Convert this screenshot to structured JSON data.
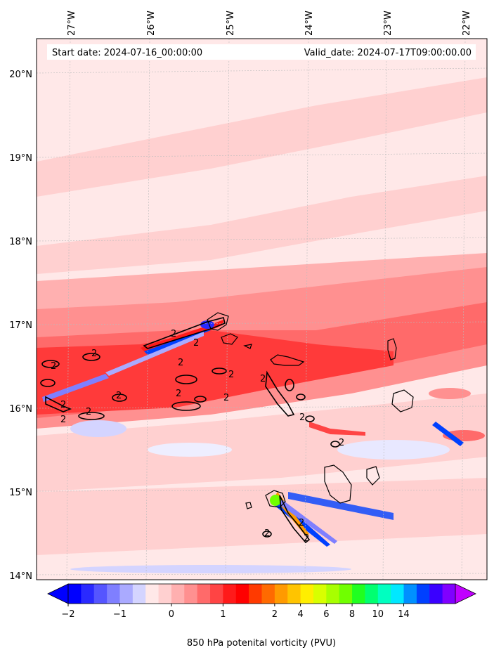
{
  "header": {
    "start_date": "Start date: 2024-07-16_00:00:00",
    "valid_date": "Valid_date: 2024-07-17T09:00:00.00"
  },
  "map": {
    "lon_labels": [
      "27°W",
      "26°W",
      "25°W",
      "24°W",
      "23°W",
      "22°W"
    ],
    "lat_labels": [
      "20°N",
      "19°N",
      "18°N",
      "17°N",
      "16°N",
      "15°N",
      "14°N"
    ],
    "contour_label": "2",
    "field": "850 hPa potential vorticity",
    "contour_level_pvu": 2
  },
  "colorbar": {
    "label": "850 hPa potenital vorticity (PVU)",
    "ticks": [
      "−2",
      "−1",
      "0",
      "1",
      "2",
      "4",
      "6",
      "8",
      "10",
      "14"
    ],
    "colors": [
      "#0000ff",
      "#2a2aff",
      "#5555ff",
      "#7f7fff",
      "#aaaaff",
      "#d4d4ff",
      "#ffe8e8",
      "#ffd0d0",
      "#ffb0b0",
      "#ff9090",
      "#ff6a6a",
      "#ff4444",
      "#ff1a1a",
      "#ff0000",
      "#ff3a00",
      "#ff6a00",
      "#ff9a00",
      "#ffc400",
      "#ffee00",
      "#d8ff00",
      "#a8ff00",
      "#70ff00",
      "#20ff20",
      "#00ff70",
      "#00ffc0",
      "#00e8ff",
      "#0090ff",
      "#0040ff",
      "#3a00ff",
      "#8000ff"
    ],
    "end_left": "#0000ff",
    "end_right": "#c000ff"
  }
}
